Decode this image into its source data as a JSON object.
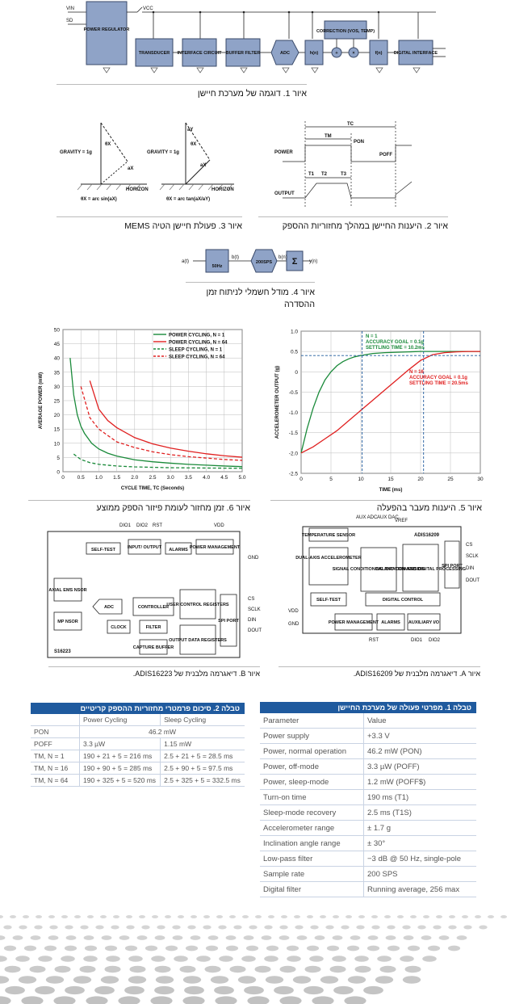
{
  "fig1": {
    "caption": "איור 1. דוגמה של מערכת חיישן",
    "blocks": [
      "POWER REGULATOR",
      "TRANSDUCER",
      "INTERFACE CIRCUIT",
      "BUFFER FILTER",
      "ADC",
      "h(n)",
      "CORRECTION (VOS, TEMP)",
      "f(n)",
      "DIGITAL INTERFACE"
    ],
    "signals": [
      "VIN",
      "SD",
      "VCC",
      "+",
      "×"
    ]
  },
  "fig2": {
    "caption": "איור 2. היענות החיישן במהלך מחזוריות ההספק",
    "labels": [
      "TC",
      "TM",
      "PON",
      "POFF",
      "POWER",
      "OUTPUT",
      "T1",
      "T2",
      "T3"
    ]
  },
  "fig3": {
    "caption": "איור 3. פעולת חיישן הטיה MEMS",
    "labels": [
      "GRAVITY = 1g",
      "HORIZON",
      "θX = arc sin(aX)",
      "θX = arc tan(aX/aY)",
      "aX",
      "aY",
      "θX"
    ]
  },
  "fig4": {
    "caption": "איור 4. מודל חשמלי לניתוח זמן ההסדרה",
    "labels": [
      "a(t)",
      "b(t)",
      "b(n)",
      "y(n)",
      "50Hz",
      "200SPS",
      "Σ"
    ]
  },
  "fig6": {
    "caption": "איור 6. זמן מחזור לעומת פיזור הספק ממוצע"
  },
  "fig5": {
    "caption": "איור 5. היענות מעבר בהפעלה",
    "annotations": [
      "N = 1",
      "ACCURACY GOAL = 0.1g",
      "SETTLING TIME = 10.2ms",
      "N = 16",
      "ACCURACY GOAL = 0.1g",
      "SETTLING TIME = 20.5ms"
    ]
  },
  "chart_data": [
    {
      "type": "line",
      "xlabel": "CYCLE TIME, TC (Seconds)",
      "ylabel": "AVERAGE POWER (mW)",
      "xlim": [
        0,
        5.0
      ],
      "ylim": [
        0,
        50
      ],
      "xticks": [
        "0",
        "0.5",
        "1.0",
        "1.5",
        "2.0",
        "2.5",
        "3.0",
        "3.5",
        "4.0",
        "4.5",
        "5.0"
      ],
      "yticks": [
        "0",
        "5",
        "10",
        "15",
        "20",
        "25",
        "30",
        "35",
        "40",
        "45",
        "50"
      ],
      "legend": "top-right",
      "grid": true,
      "series": [
        {
          "name": "POWER CYCLING, N = 1",
          "color": "#1a8a3a",
          "dash": false,
          "x": [
            0.2,
            0.3,
            0.4,
            0.5,
            0.6,
            0.8,
            1.0,
            1.25,
            1.5,
            2.0,
            2.5,
            3.0,
            3.5,
            4.0,
            4.5,
            5.0
          ],
          "y": [
            40,
            27,
            20,
            16,
            13.5,
            10,
            8,
            6.5,
            5.5,
            4.2,
            3.5,
            3.0,
            2.6,
            2.3,
            2.0,
            1.8
          ]
        },
        {
          "name": "POWER CYCLING, N = 64",
          "color": "#e02020",
          "dash": false,
          "x": [
            0.75,
            1.0,
            1.25,
            1.5,
            2.0,
            2.5,
            3.0,
            3.5,
            4.0,
            4.5,
            5.0
          ],
          "y": [
            32,
            22,
            18,
            15.5,
            12,
            9.8,
            8.3,
            7.2,
            6.3,
            5.6,
            5.1
          ]
        },
        {
          "name": "SLEEP CYCLING, N = 1",
          "color": "#1a8a3a",
          "dash": true,
          "x": [
            0.3,
            0.5,
            0.75,
            1.0,
            1.5,
            2.0,
            3.0,
            4.0,
            5.0
          ],
          "y": [
            6.2,
            4.3,
            3.2,
            2.6,
            2.0,
            1.7,
            1.4,
            1.3,
            1.2
          ]
        },
        {
          "name": "SLEEP CYCLING, N = 64",
          "color": "#e02020",
          "dash": true,
          "x": [
            0.5,
            0.75,
            1.0,
            1.5,
            2.0,
            2.5,
            3.0,
            3.5,
            4.0,
            4.5,
            5.0
          ],
          "y": [
            30,
            19,
            15,
            10.5,
            8.5,
            7.0,
            6.0,
            5.3,
            4.8,
            4.3,
            4.0
          ]
        }
      ]
    },
    {
      "type": "line",
      "xlabel": "TIME (ms)",
      "ylabel": "ACCELEROMETER OUTPUT (g)",
      "xlim": [
        0,
        30
      ],
      "ylim": [
        -2.5,
        1.0
      ],
      "xticks": [
        "0",
        "5",
        "10",
        "15",
        "20",
        "25",
        "30"
      ],
      "yticks": [
        "1.0",
        "0.5",
        "0",
        "-0.5",
        "-1.0",
        "-1.5",
        "-2.0",
        "-2.5"
      ],
      "grid": true,
      "series": [
        {
          "color": "#1a8a3a",
          "x": [
            0,
            1,
            2,
            3,
            4,
            5,
            6,
            7,
            8,
            9,
            10,
            12,
            14,
            16,
            18,
            20,
            25,
            30
          ],
          "y": [
            -2.0,
            -1.4,
            -0.9,
            -0.5,
            -0.2,
            0.0,
            0.15,
            0.25,
            0.32,
            0.37,
            0.4,
            0.45,
            0.47,
            0.48,
            0.49,
            0.5,
            0.5,
            0.5
          ]
        },
        {
          "color": "#e02020",
          "x": [
            0,
            2,
            4,
            6,
            8,
            10,
            12,
            14,
            16,
            18,
            20,
            22,
            24,
            26,
            28,
            30
          ],
          "y": [
            -2.0,
            -1.85,
            -1.65,
            -1.45,
            -1.2,
            -0.95,
            -0.7,
            -0.45,
            -0.2,
            0.05,
            0.28,
            0.42,
            0.47,
            0.49,
            0.5,
            0.5
          ]
        }
      ]
    }
  ],
  "figB": {
    "caption": "איור B. דיאגרמה מלבנית של ADIS16223.",
    "labels": [
      "DIO1",
      "DIO2",
      "RST",
      "VDD",
      "GND",
      "SELF-TEST",
      "INPUT/ OUTPUT",
      "ALARMS",
      "POWER MANAGEMENT",
      "AXIAL EMS NSOR",
      "MP NSOR",
      "ADC",
      "CONTROLLER",
      "CLOCK",
      "USER CONTROL REGISTERS",
      "FILTER",
      "CAPTURE BUFFER",
      "OUTPUT DATA REGISTERS",
      "SPI PORT",
      "CS",
      "SCLK",
      "DIN",
      "DOUT",
      "S16223"
    ]
  },
  "figA": {
    "caption": "איור A. דיאגרמה מלבנית של ADIS16209.",
    "labels": [
      "AUX ADC",
      "AUX DAC",
      "VREF",
      "ADIS16209",
      "TEMPERATURE SENSOR",
      "DUAL-AXIS ACCELEROMETER",
      "SIGNAL CONDITIONING AND CONVERSION",
      "CALIBRATION AND DIGITAL PROCESSING",
      "SPI PORT",
      "CS",
      "SCLK",
      "DIN",
      "DOUT",
      "SELF-TEST",
      "DIGITAL CONTROL",
      "POWER MANAGEMENT",
      "ALARMS",
      "AUXILIARY I/O",
      "VDD",
      "GND",
      "RST",
      "DIO1",
      "DIO2"
    ]
  },
  "table2": {
    "title": "טבלה 2. סיכום פרמטרי מחזוריות ההספק קריטיים",
    "headers": [
      "",
      "Power Cycling",
      "Sleep Cycling"
    ],
    "pon": [
      "PON",
      "46.2 mW"
    ],
    "rows": [
      [
        "POFF",
        "3.3 µW",
        "1.15 mW"
      ],
      [
        "TM, N = 1",
        "190 + 21 + 5 = 216 ms",
        "2.5 + 21 + 5 = 28.5 ms"
      ],
      [
        "TM, N = 16",
        "190 + 90 + 5 = 285 ms",
        "2.5 + 90 + 5 = 97.5 ms"
      ],
      [
        "TM, N = 64",
        "190 + 325 + 5 = 520 ms",
        "2.5 + 325 + 5 = 332.5 ms"
      ]
    ]
  },
  "table1": {
    "title": "טבלה 1. מפרטי פעולה של מערכת החיישן",
    "rows": [
      [
        "Parameter",
        "Value"
      ],
      [
        "Power supply",
        "+3.3 V"
      ],
      [
        "Power, normal operation",
        "46.2 mW (PON)"
      ],
      [
        "Power, off-mode",
        "3.3 µW (POFF)"
      ],
      [
        "Power, sleep-mode",
        "1.2 mW (POFF$)"
      ],
      [
        "Turn-on time",
        "190 ms (T1)"
      ],
      [
        "Sleep-mode recovery",
        "2.5 ms (T1S)"
      ],
      [
        "Accelerometer range",
        "± 1.7 g"
      ],
      [
        "Inclination angle range",
        "± 30°"
      ],
      [
        "Low-pass filter",
        "−3 dB @ 50 Hz, single-pole"
      ],
      [
        "Sample rate",
        "200 SPS"
      ],
      [
        "Digital filter",
        "Running average, 256 max"
      ]
    ]
  }
}
